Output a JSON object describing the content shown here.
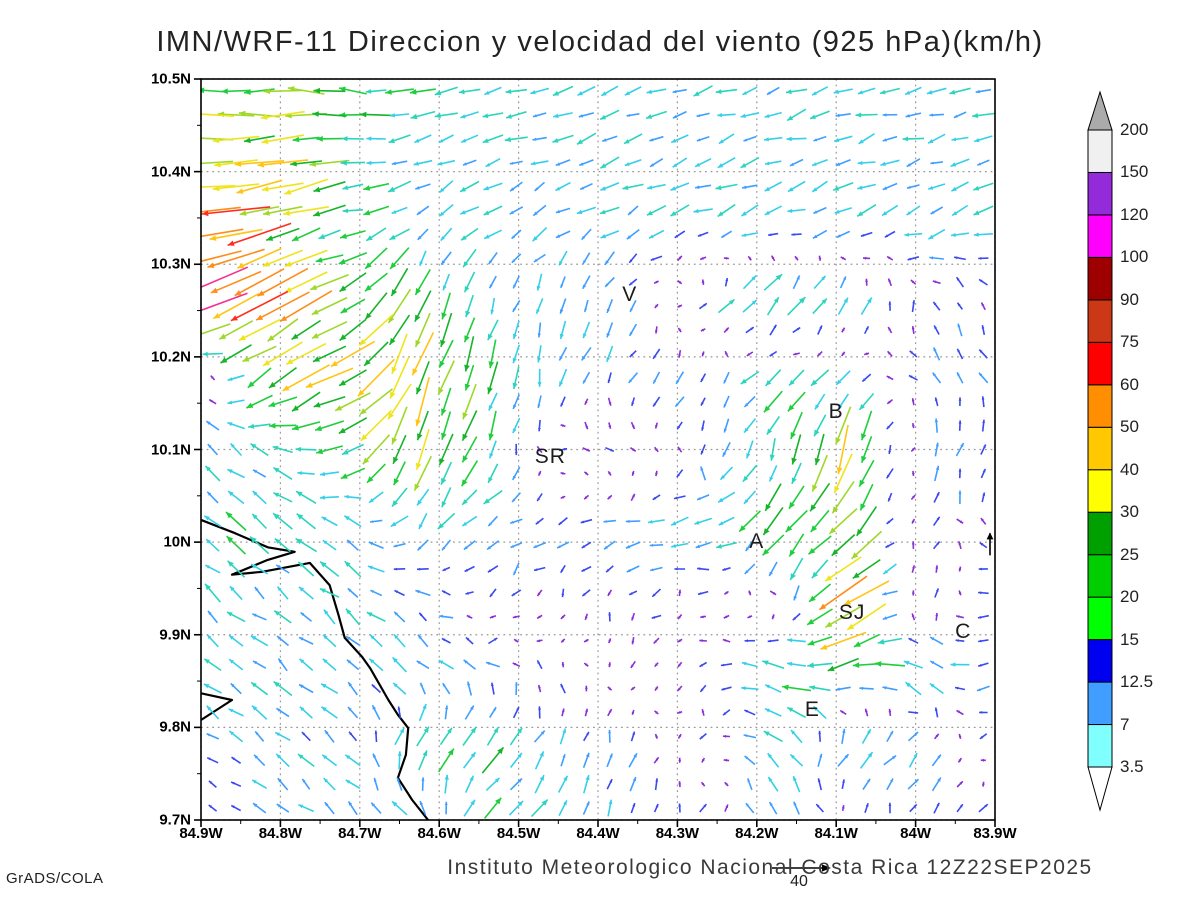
{
  "credit": "GrADS/COLA",
  "chart_data": {
    "type": "vector_field",
    "title": "IMN/WRF-11 Direccion y velocidad del viento (925 hPa)(km/h)",
    "footer": "Instituto Meteorologico Nacional Costa Rica  12Z22SEP2025",
    "units": "km/h",
    "pressure_level": "925 hPa",
    "model": "IMN/WRF-11",
    "valid_time": "12Z22SEP2025",
    "lat_ticks": [
      "10.5N",
      "10.4N",
      "10.3N",
      "10.2N",
      "10.1N",
      "10N",
      "9.9N",
      "9.8N",
      "9.7N"
    ],
    "lat_values": [
      10.5,
      10.4,
      10.3,
      10.2,
      10.1,
      10.0,
      9.9,
      9.8,
      9.7
    ],
    "lon_ticks": [
      "84.9W",
      "84.8W",
      "84.7W",
      "84.6W",
      "84.5W",
      "84.4W",
      "84.3W",
      "84.2W",
      "84.1W",
      "84W",
      "83.9W"
    ],
    "lon_values": [
      84.9,
      84.8,
      84.7,
      84.6,
      84.5,
      84.4,
      84.3,
      84.2,
      84.1,
      84.0,
      83.9
    ],
    "grid_on": true,
    "colorbar": {
      "levels": [
        3.5,
        7,
        12.5,
        15,
        20,
        25,
        30,
        40,
        50,
        60,
        75,
        90,
        100,
        120,
        150,
        200
      ],
      "colors_bottom_to_top": [
        "#80FFFF",
        "#3F9EFF",
        "#0000F0",
        "#00FF00",
        "#00CE00",
        "#00A000",
        "#FFFF00",
        "#FFC800",
        "#FF8E00",
        "#FF0000",
        "#CC3815",
        "#9E0000",
        "#FF00FF",
        "#942BDB",
        "#F0F0F0"
      ],
      "above_color": "#ABABAB",
      "below_color": "#FFFFFF"
    },
    "reference_vector": {
      "label": "40",
      "speed": 40
    },
    "cities": [
      {
        "label": "V",
        "lon": 84.36,
        "lat": 10.267
      },
      {
        "label": "B",
        "lon": 84.1,
        "lat": 10.14
      },
      {
        "label": "SR",
        "lon": 84.46,
        "lat": 10.092
      },
      {
        "label": "A",
        "lon": 84.2,
        "lat": 10.0
      },
      {
        "label": "SJ",
        "lon": 84.08,
        "lat": 9.923
      },
      {
        "label": "C",
        "lon": 83.94,
        "lat": 9.903
      },
      {
        "label": "E",
        "lon": 84.13,
        "lat": 9.819
      }
    ],
    "wind_grid": {
      "note": "coarse u,v (km/h, east+/north+) control nodes, 12 lon cols 84.9W->83.9W x 11 lat rows 10.5N->9.7N",
      "cols": 12,
      "rows": 11,
      "uv": [
        [
          [
            -26,
            2
          ],
          [
            -28,
            0
          ],
          [
            -24,
            3
          ],
          [
            -16,
            -2
          ],
          [
            -14,
            -4
          ],
          [
            -13,
            -4
          ],
          [
            -12,
            -4
          ],
          [
            -12,
            -4
          ],
          [
            -13,
            -3
          ],
          [
            -13,
            -4
          ],
          [
            -12,
            -3
          ],
          [
            -14,
            -2
          ]
        ],
        [
          [
            -30,
            -2
          ],
          [
            -30,
            -4
          ],
          [
            -22,
            -2
          ],
          [
            -14,
            -4
          ],
          [
            -13,
            -5
          ],
          [
            -12,
            -4
          ],
          [
            -12,
            -5
          ],
          [
            -12,
            -4
          ],
          [
            -13,
            -4
          ],
          [
            -12,
            -4
          ],
          [
            -12,
            -4
          ],
          [
            -13,
            -3
          ]
        ],
        [
          [
            -48,
            -6
          ],
          [
            -36,
            -10
          ],
          [
            -18,
            -4
          ],
          [
            -8,
            -10
          ],
          [
            -9,
            -7
          ],
          [
            -10,
            -6
          ],
          [
            -11,
            -6
          ],
          [
            -12,
            -5
          ],
          [
            -12,
            -5
          ],
          [
            -12,
            -5
          ],
          [
            -12,
            -4
          ],
          [
            -12,
            -4
          ]
        ],
        [
          [
            -48,
            -18
          ],
          [
            -35,
            -22
          ],
          [
            -25,
            -14
          ],
          [
            -8,
            -22
          ],
          [
            -5,
            -12
          ],
          [
            -3,
            -10
          ],
          [
            -4,
            -7
          ],
          [
            6,
            8
          ],
          [
            16,
            18
          ],
          [
            10,
            12
          ],
          [
            -4,
            7
          ],
          [
            -5,
            6
          ]
        ],
        [
          [
            3,
            7
          ],
          [
            -25,
            -18
          ],
          [
            -30,
            -14
          ],
          [
            -10,
            -32
          ],
          [
            -5,
            -20
          ],
          [
            -4,
            -12
          ],
          [
            -5,
            -8
          ],
          [
            -2,
            -8
          ],
          [
            -15,
            -12
          ],
          [
            -8,
            -8
          ],
          [
            -4,
            8
          ],
          [
            -4,
            7
          ]
        ],
        [
          [
            -10,
            8
          ],
          [
            -12,
            6
          ],
          [
            -20,
            -10
          ],
          [
            -10,
            -28
          ],
          [
            -8,
            -18
          ],
          [
            8,
            2
          ],
          [
            4,
            -3
          ],
          [
            -3,
            -8
          ],
          [
            -4,
            -15
          ],
          [
            -8,
            -32
          ],
          [
            3,
            10
          ],
          [
            3,
            9
          ]
        ],
        [
          [
            -12,
            10
          ],
          [
            -13,
            10
          ],
          [
            -12,
            8
          ],
          [
            -8,
            -12
          ],
          [
            -10,
            -6
          ],
          [
            -8,
            -4
          ],
          [
            -12,
            -2
          ],
          [
            -14,
            -2
          ],
          [
            -18,
            -20
          ],
          [
            -20,
            -22
          ],
          [
            5,
            8
          ],
          [
            -3,
            6
          ]
        ],
        [
          [
            -11,
            9
          ],
          [
            -12,
            9
          ],
          [
            -11,
            8
          ],
          [
            -9,
            6
          ],
          [
            -4,
            -5
          ],
          [
            -3,
            -5
          ],
          [
            -4,
            -6
          ],
          [
            -6,
            0
          ],
          [
            6,
            -3
          ],
          [
            -36,
            -22
          ],
          [
            8,
            8
          ],
          [
            -12,
            -3
          ]
        ],
        [
          [
            -10,
            8
          ],
          [
            -11,
            9
          ],
          [
            -10,
            9
          ],
          [
            -10,
            8
          ],
          [
            -8,
            6
          ],
          [
            -2,
            5
          ],
          [
            -3,
            -4
          ],
          [
            -5,
            -3
          ],
          [
            -20,
            5
          ],
          [
            -22,
            -6
          ],
          [
            -15,
            8
          ],
          [
            -10,
            -4
          ]
        ],
        [
          [
            -8,
            6
          ],
          [
            -9,
            7
          ],
          [
            -10,
            8
          ],
          [
            10,
            14
          ],
          [
            14,
            16
          ],
          [
            4,
            10
          ],
          [
            2,
            9
          ],
          [
            -2,
            -6
          ],
          [
            -12,
            10
          ],
          [
            10,
            12
          ],
          [
            8,
            8
          ],
          [
            -8,
            -3
          ]
        ],
        [
          [
            -8,
            6
          ],
          [
            -9,
            7
          ],
          [
            -10,
            9
          ],
          [
            -12,
            12
          ],
          [
            10,
            12
          ],
          [
            8,
            12
          ],
          [
            4,
            10
          ],
          [
            2,
            8
          ],
          [
            -4,
            8
          ],
          [
            -2,
            4
          ],
          [
            6,
            8
          ],
          [
            10,
            8
          ]
        ]
      ]
    },
    "arrow_palette": [
      [
        6,
        "#8B2FD6"
      ],
      [
        9,
        "#3A49F0"
      ],
      [
        12,
        "#3F9EFF"
      ],
      [
        15,
        "#35CFE8"
      ],
      [
        19,
        "#2BD4BC"
      ],
      [
        23,
        "#1FCE3C"
      ],
      [
        27,
        "#16B42A"
      ],
      [
        31,
        "#9FD82A"
      ],
      [
        35,
        "#EFE41C"
      ],
      [
        40,
        "#FFC414"
      ],
      [
        46,
        "#FF8D1A"
      ],
      [
        52,
        "#FF2D1E"
      ],
      [
        999,
        "#F5308F"
      ]
    ],
    "coastline_frac": [
      [
        [
          0.0,
          0.595
        ],
        [
          0.043,
          0.613
        ],
        [
          0.084,
          0.632
        ],
        [
          0.118,
          0.638
        ],
        [
          0.084,
          0.649
        ],
        [
          0.039,
          0.669
        ],
        [
          0.077,
          0.665
        ],
        [
          0.137,
          0.653
        ],
        [
          0.162,
          0.683
        ],
        [
          0.173,
          0.723
        ],
        [
          0.181,
          0.754
        ],
        [
          0.203,
          0.78
        ],
        [
          0.213,
          0.795
        ],
        [
          0.236,
          0.838
        ],
        [
          0.248,
          0.858
        ],
        [
          0.261,
          0.876
        ],
        [
          0.258,
          0.912
        ],
        [
          0.248,
          0.943
        ],
        [
          0.266,
          0.973
        ],
        [
          0.286,
          1.0
        ]
      ],
      [
        [
          0.0,
          0.829
        ],
        [
          0.039,
          0.838
        ],
        [
          0.0,
          0.865
        ]
      ]
    ],
    "edge_arrow": {
      "x_frac": 0.9937,
      "y_frac": 0.628,
      "len": 22
    }
  }
}
